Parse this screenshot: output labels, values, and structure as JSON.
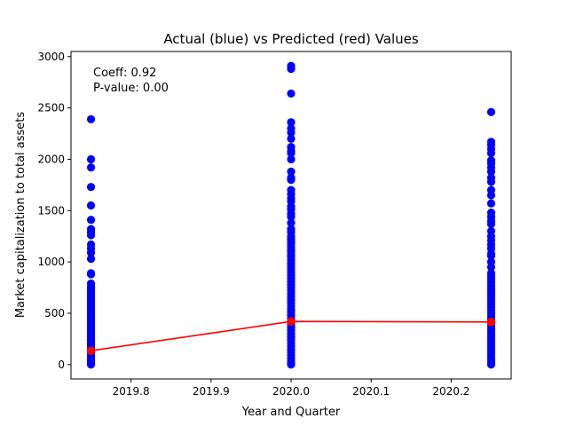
{
  "chart_data": {
    "type": "scatter",
    "title": "Actual (blue) vs Predicted (red) Values",
    "xlabel": "Year and Quarter",
    "ylabel": "Market capitalization to total assets",
    "xlim": [
      2019.725,
      2020.275
    ],
    "ylim": [
      -140,
      3050
    ],
    "xticks": [
      2019.8,
      2019.9,
      2020.0,
      2020.1,
      2020.2
    ],
    "xtick_labels": [
      "2019.8",
      "2019.9",
      "2020.0",
      "2020.1",
      "2020.2"
    ],
    "yticks": [
      0,
      500,
      1000,
      1500,
      2000,
      2500,
      3000
    ],
    "ytick_labels": [
      "0",
      "500",
      "1000",
      "1500",
      "2000",
      "2500",
      "3000"
    ],
    "annotations": [
      "Coeff: 0.92",
      "P-value: 0.00"
    ],
    "grid": false,
    "colors": {
      "actual": "#0000ff",
      "predicted": "#ff0000"
    },
    "series": [
      {
        "kind": "points",
        "color": "#0000ff",
        "groups": [
          {
            "x": 2019.75,
            "y": [
              2390,
              2000,
              1920,
              1730,
              1550,
              1410,
              1320,
              1290,
              1260,
              1170,
              1130,
              1090,
              1030,
              890,
              880,
              790,
              760,
              740,
              720,
              700,
              680,
              660,
              640,
              620,
              600,
              580,
              560,
              540,
              520,
              500,
              480,
              460,
              440,
              420,
              400,
              380,
              360,
              340,
              320,
              300,
              280,
              260,
              240,
              220,
              200,
              180,
              160,
              140,
              120,
              100,
              80,
              60,
              40,
              25,
              15,
              5,
              0
            ]
          },
          {
            "x": 2020.0,
            "y": [
              2910,
              2880,
              2640,
              2360,
              2300,
              2260,
              2200,
              2120,
              2080,
              2060,
              2000,
              1880,
              1820,
              1800,
              1700,
              1660,
              1620,
              1590,
              1540,
              1510,
              1470,
              1440,
              1380,
              1320,
              1290,
              1250,
              1220,
              1200,
              1180,
              1150,
              1120,
              1100,
              1070,
              1050,
              1020,
              990,
              960,
              930,
              900,
              870,
              840,
              810,
              780,
              750,
              720,
              690,
              660,
              630,
              600,
              570,
              540,
              510,
              480,
              450,
              420,
              390,
              360,
              330,
              300,
              270,
              240,
              210,
              180,
              150,
              120,
              90,
              60,
              30,
              10,
              0
            ]
          },
          {
            "x": 2020.25,
            "y": [
              2460,
              2170,
              2140,
              2100,
              2060,
              1990,
              1960,
              1920,
              1880,
              1820,
              1780,
              1700,
              1650,
              1570,
              1480,
              1440,
              1400,
              1370,
              1300,
              1250,
              1210,
              1170,
              1130,
              1080,
              1060,
              1000,
              950,
              890,
              860,
              830,
              800,
              770,
              740,
              710,
              680,
              650,
              620,
              590,
              560,
              530,
              500,
              470,
              440,
              410,
              380,
              350,
              320,
              290,
              260,
              230,
              200,
              170,
              140,
              110,
              80,
              50,
              25,
              10,
              0
            ]
          }
        ]
      },
      {
        "kind": "line+markers",
        "color": "#ff0000",
        "x": [
          2019.75,
          2020.0,
          2020.25
        ],
        "y": [
          135,
          420,
          415
        ]
      }
    ]
  }
}
